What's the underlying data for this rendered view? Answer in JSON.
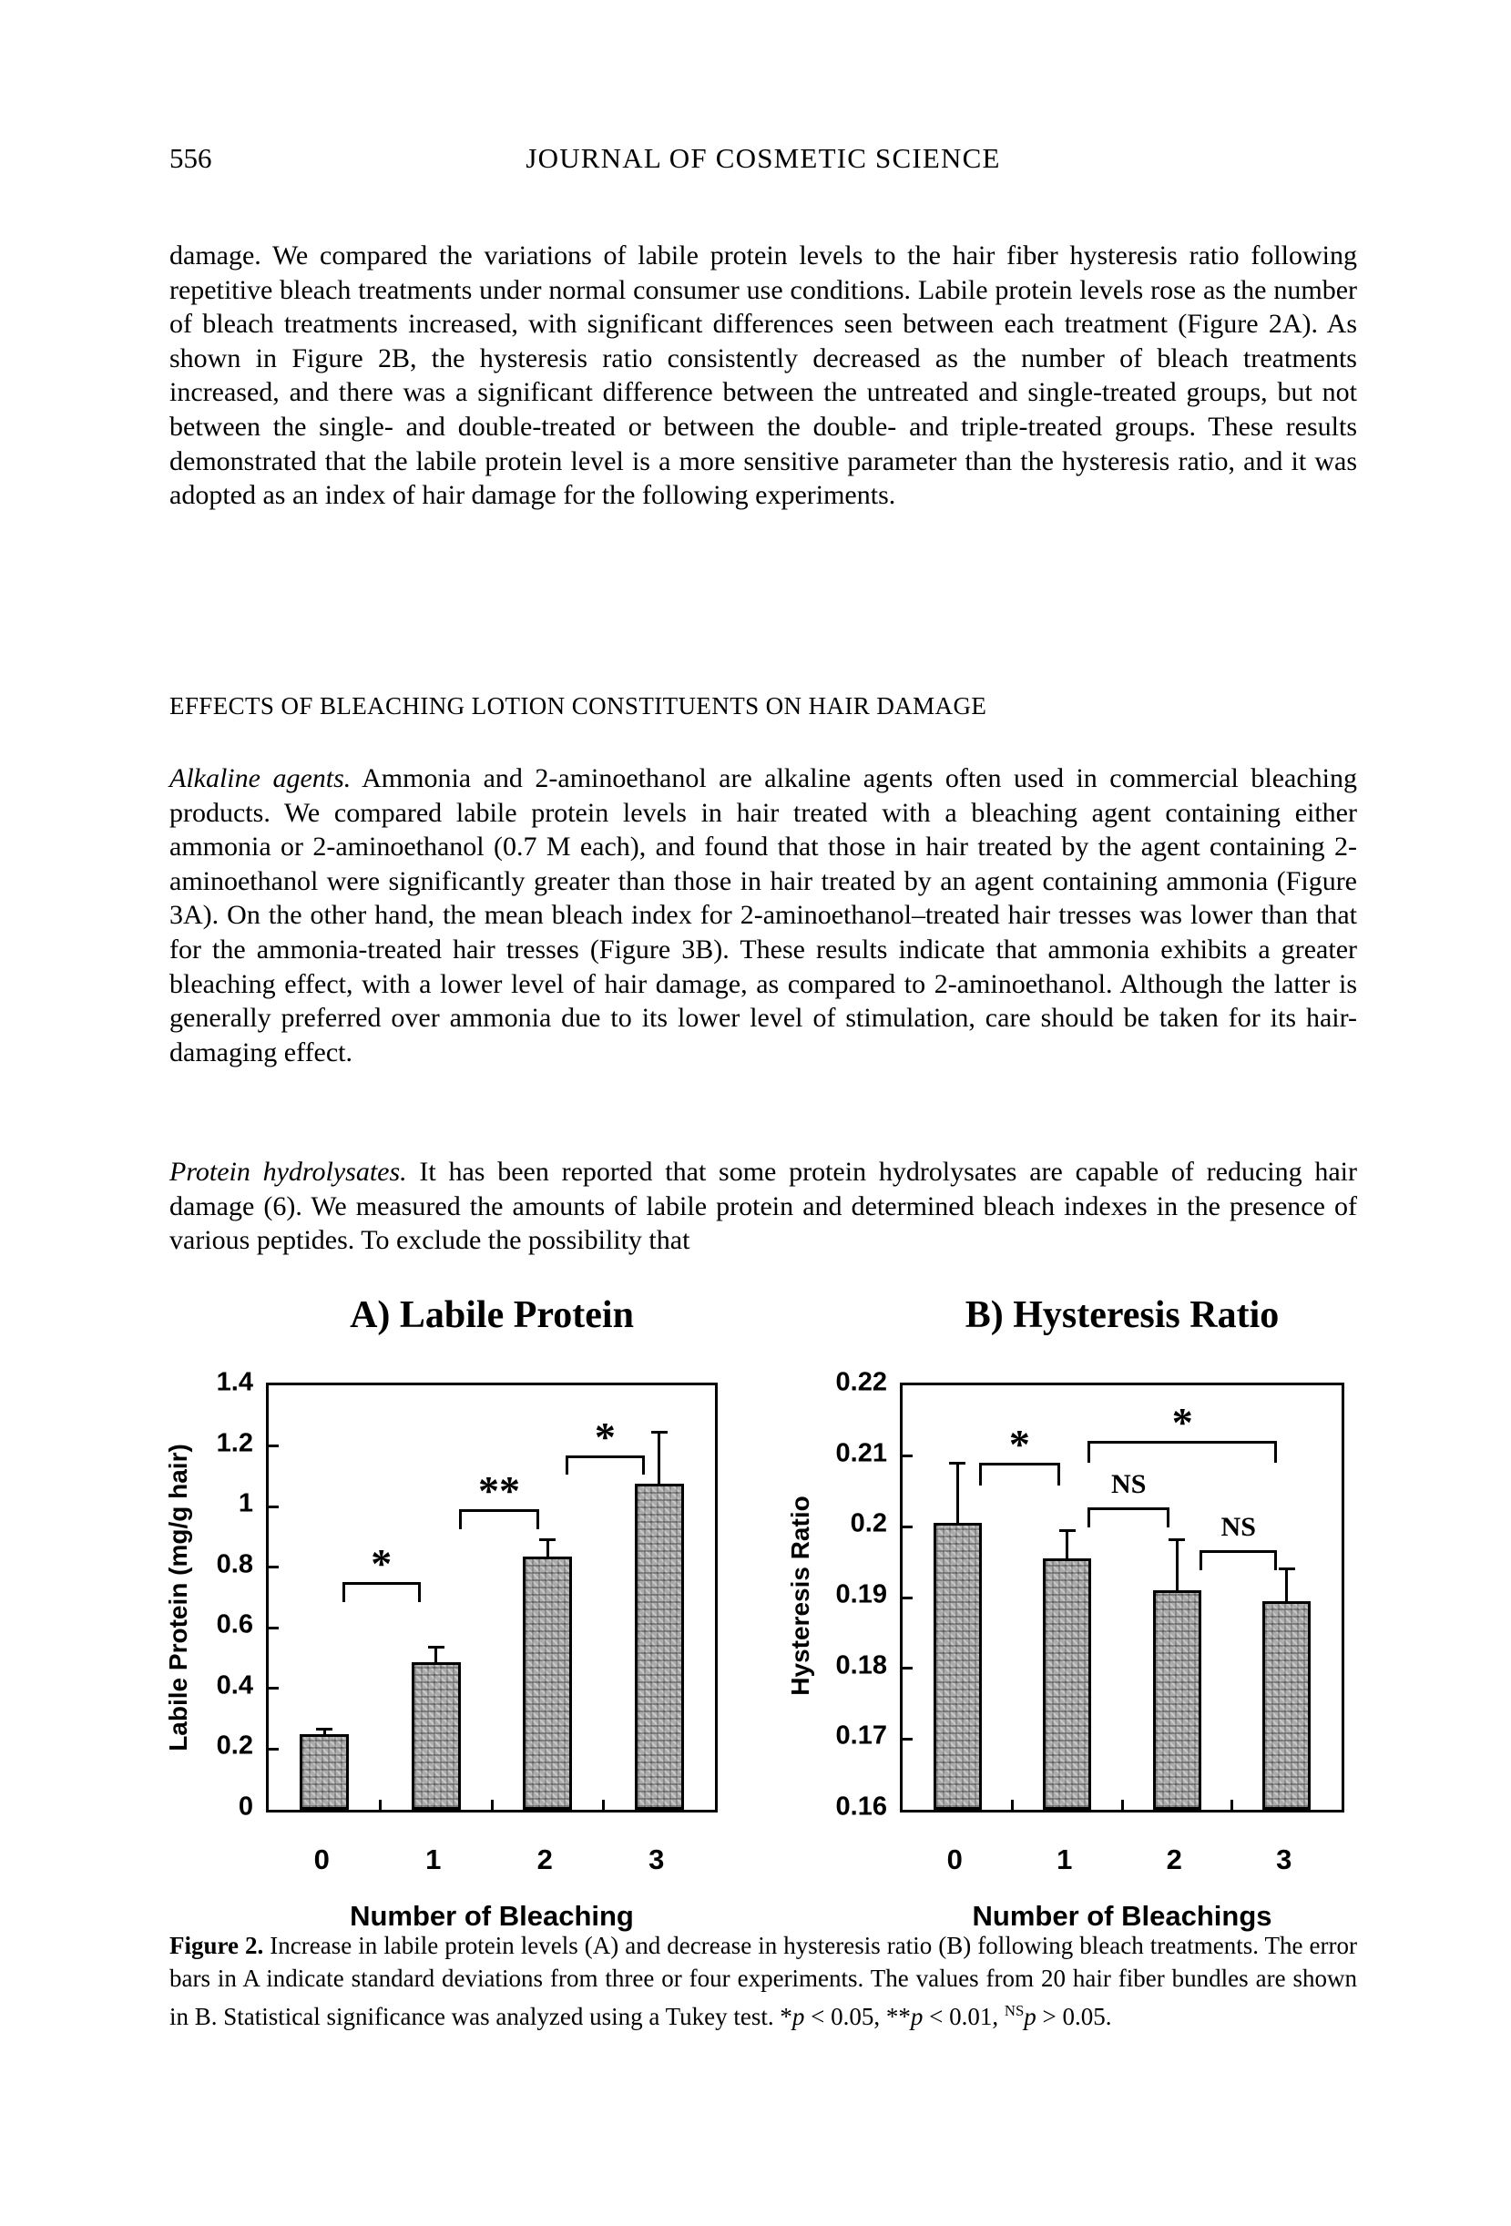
{
  "header": {
    "page_number": "556",
    "journal_title": "JOURNAL OF COSMETIC SCIENCE"
  },
  "body": {
    "para_damage": {
      "segments": [
        {
          "t": "damage. We compared the variations of labile protein levels to the hair fiber hysteresis ratio following repetitive bleach treatments under normal consumer use conditions. Labile protein levels rose as the number of bleach treatments increased, with significant differences seen between each treatment (Figure 2A). As shown in Figure 2B, the hysteresis ratio consistently decreased as the number of bleach treatments increased, and there was a significant difference between the untreated and single-treated groups, but not between the single- and double-treated or between the double- and triple-treated groups. These results demonstrated that the labile protein level is a more sensitive parameter than the hysteresis ratio, and it was adopted as an index of hair damage for the following experiments."
        }
      ]
    },
    "section_heading": "EFFECTS OF BLEACHING LOTION CONSTITUENTS ON HAIR DAMAGE",
    "para_alkaline": {
      "segments": [
        {
          "t": "Alkaline agents.",
          "i": true
        },
        {
          "t": " Ammonia and 2-aminoethanol are alkaline agents often used in commercial bleaching products. We compared labile protein levels in hair treated with a bleaching agent containing either ammonia or 2-aminoethanol (0.7 M each), and found that those in hair treated by the agent containing 2-aminoethanol were significantly greater than those in hair treated by an agent containing ammonia (Figure 3A). On the other hand, the mean bleach index for 2-aminoethanol–treated hair tresses was lower than that for the ammonia-treated hair tresses (Figure 3B). These results indicate that ammonia exhibits a greater bleaching effect, with a lower level of hair damage, as compared to 2-aminoethanol. Although the latter is generally preferred over ammonia due to its lower level of stimulation, care should be taken for its hair-damaging effect."
        }
      ]
    },
    "para_protein": {
      "segments": [
        {
          "t": "Protein hydrolysates.",
          "i": true
        },
        {
          "t": " It has been reported that some protein hydrolysates are capable of reducing hair damage (6). We measured the amounts of labile protein and determined bleach indexes in the presence of various peptides. To exclude the possibility that"
        }
      ]
    }
  },
  "figure_caption": {
    "segments": [
      {
        "t": "Figure 2.",
        "b": true
      },
      {
        "t": "  Increase in labile protein levels (A) and decrease in hysteresis ratio (B) following bleach treatments. The error bars in A indicate standard deviations from three or four experiments. The values from 20 hair fiber bundles are shown in B. Statistical significance was analyzed using a Tukey test. *"
      },
      {
        "t": "p",
        "i": true
      },
      {
        "t": " < 0.05, **"
      },
      {
        "t": "p",
        "i": true
      },
      {
        "t": " < 0.01, "
      },
      {
        "t": "NS",
        "sup": true
      },
      {
        "t": "p",
        "i": true
      },
      {
        "t": " > 0.05."
      }
    ]
  },
  "chart_data": [
    {
      "type": "bar",
      "title": "A) Labile Protein",
      "categories": [
        "0",
        "1",
        "2",
        "3"
      ],
      "values": [
        0.25,
        0.487,
        0.835,
        1.075
      ],
      "errors_up": [
        0.016,
        0.05,
        0.055,
        0.17
      ],
      "xlabel": "Number of Bleaching",
      "ylabel": "Labile Protein (mg/g hair)",
      "ylim": [
        0,
        1.4
      ],
      "ytick_values": [
        0,
        0.2,
        0.4,
        0.6,
        0.8,
        1,
        1.2,
        1.4
      ],
      "ytick_labels": [
        "0",
        "0.2",
        "0.4",
        "0.6",
        "0.8",
        "1",
        "1.2",
        "1.4"
      ],
      "grid": false,
      "bar_width_frac": 0.44,
      "annotations": [
        {
          "x1": 0.17,
          "x2": 0.85,
          "y": 0.75,
          "drop": 0.065,
          "label": "*"
        },
        {
          "x1": 1.22,
          "x2": 1.91,
          "y": 0.99,
          "drop": 0.065,
          "label": "**"
        },
        {
          "x1": 2.17,
          "x2": 2.86,
          "y": 1.17,
          "drop": 0.065,
          "label": "*"
        }
      ]
    },
    {
      "type": "bar",
      "title": "B) Hysteresis Ratio",
      "categories": [
        "0",
        "1",
        "2",
        "3"
      ],
      "values": [
        0.2005,
        0.1955,
        0.191,
        0.1895
      ],
      "errors_up": [
        0.0085,
        0.004,
        0.0072,
        0.0045
      ],
      "xlabel": "Number of Bleachings",
      "ylabel": "Hysteresis Ratio",
      "ylim": [
        0.16,
        0.22
      ],
      "ytick_values": [
        0.16,
        0.17,
        0.18,
        0.19,
        0.2,
        0.21,
        0.22
      ],
      "ytick_labels": [
        "0.16",
        "0.17",
        "0.18",
        "0.19",
        "0.2",
        "0.21",
        "0.22"
      ],
      "grid": false,
      "bar_width_frac": 0.44,
      "annotations": [
        {
          "x1": 0.21,
          "x2": 0.92,
          "y": 0.209,
          "drop": 0.0032,
          "label": "*"
        },
        {
          "x1": 1.2,
          "x2": 2.9,
          "y": 0.2122,
          "drop": 0.0032,
          "label": "*"
        },
        {
          "x1": 1.2,
          "x2": 1.92,
          "y": 0.2027,
          "drop": 0.0028,
          "label": "NS"
        },
        {
          "x1": 2.22,
          "x2": 2.9,
          "y": 0.1967,
          "drop": 0.0028,
          "label": "NS"
        }
      ]
    }
  ]
}
